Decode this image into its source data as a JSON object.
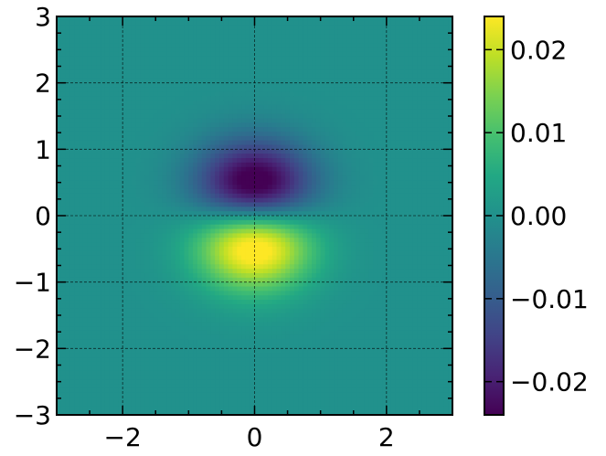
{
  "chart_data": {
    "type": "heatmap",
    "title": "",
    "xlabel": "",
    "ylabel": "",
    "xlim": [
      -3,
      3
    ],
    "ylim": [
      -3,
      3
    ],
    "x_ticks": [
      -2,
      0,
      2
    ],
    "x_tick_labels": [
      "−2",
      "0",
      "2"
    ],
    "y_ticks": [
      -3,
      -2,
      -1,
      0,
      1,
      2,
      3
    ],
    "y_tick_labels": [
      "−3",
      "−2",
      "−1",
      "0",
      "1",
      "2",
      "3"
    ],
    "grid": true,
    "grid_style": "dashed",
    "colormap": "viridis",
    "colorbar": {
      "range": [
        -0.024,
        0.024
      ],
      "ticks": [
        -0.02,
        -0.01,
        0.0,
        0.01,
        0.02
      ],
      "tick_labels": [
        "−0.02",
        "−0.01",
        "0.00",
        "0.01",
        "0.02"
      ]
    },
    "field": {
      "description_values": [
        {
          "x": 0,
          "y": 0.4,
          "value": -0.024
        },
        {
          "x": 0,
          "y": -0.4,
          "value": 0.024
        },
        {
          "x": -3,
          "y": 3,
          "value": 0.0
        }
      ]
    }
  }
}
